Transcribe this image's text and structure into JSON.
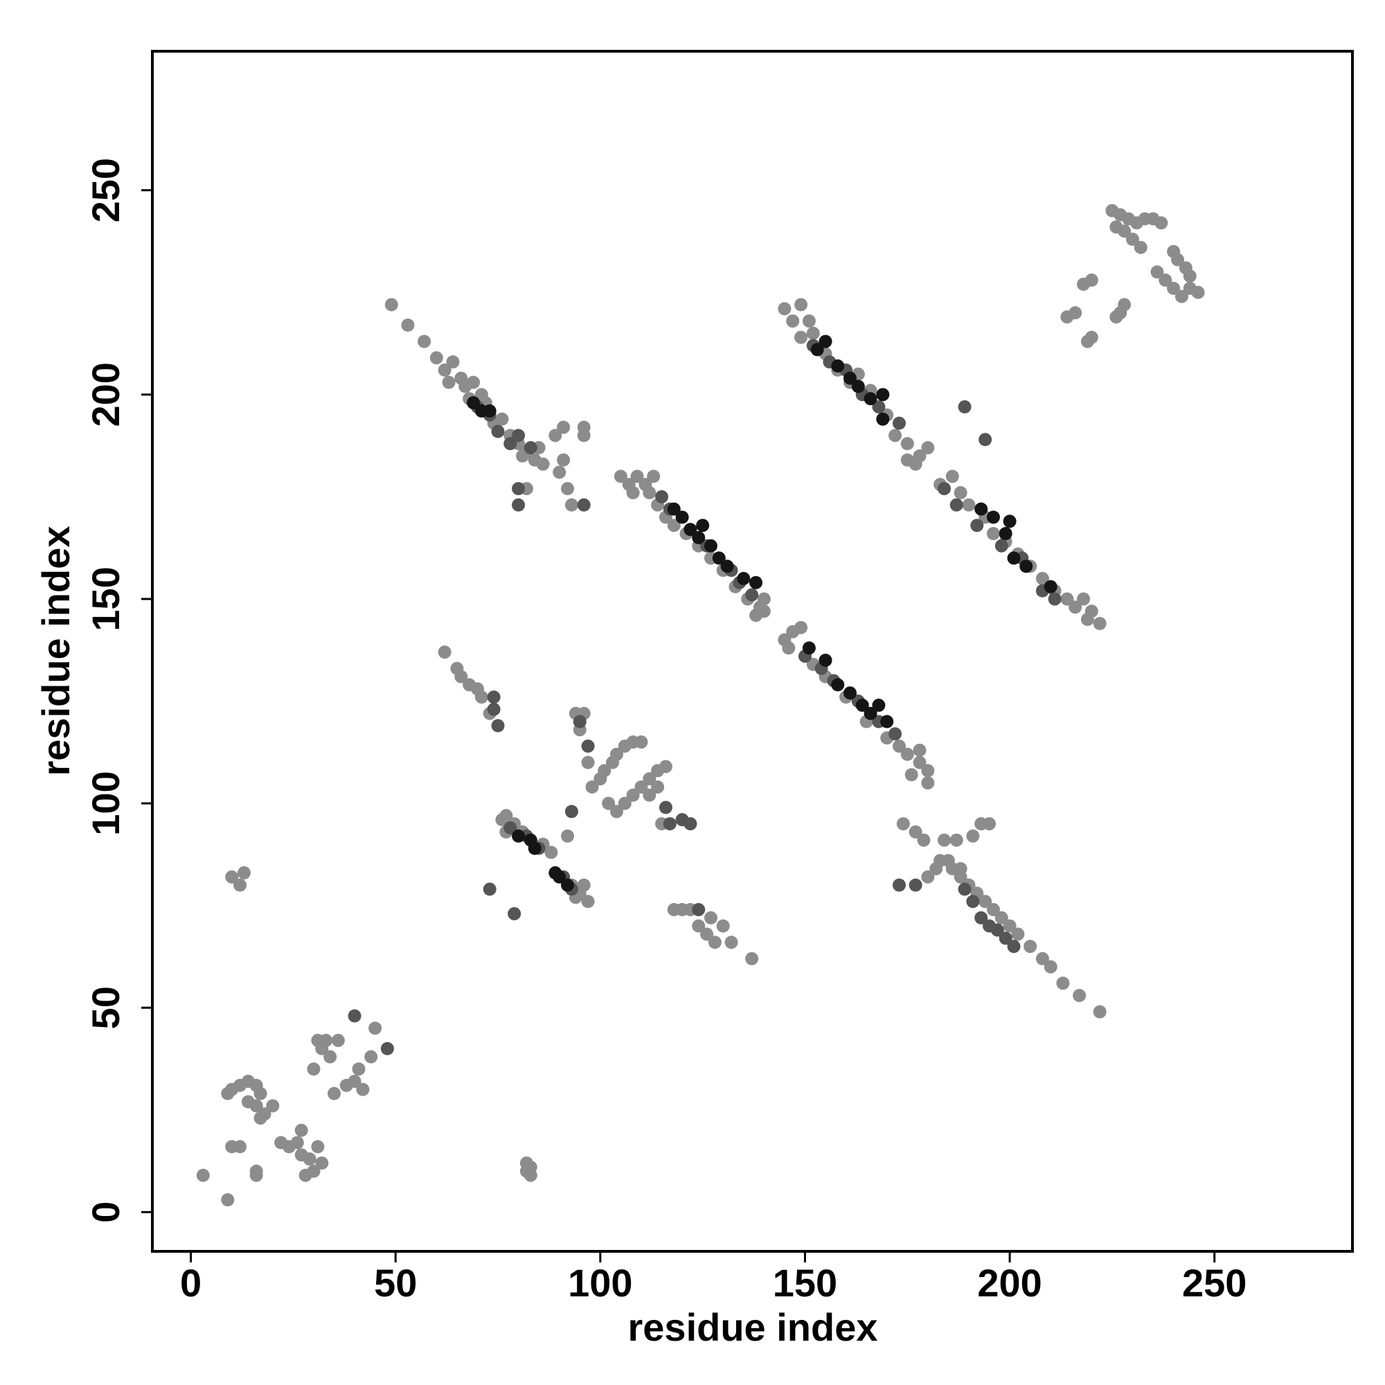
{
  "chart_data": {
    "type": "scatter",
    "xlabel": "residue index",
    "ylabel": "residue index",
    "xlim": [
      -9.4,
      283.7
    ],
    "ylim": [
      -9.6,
      284
    ],
    "xticks": [
      0,
      50,
      100,
      150,
      200,
      250
    ],
    "yticks": [
      0,
      50,
      100,
      150,
      200,
      250
    ],
    "series": [
      {
        "color": "#8c8c8c",
        "x": [
          3,
          9,
          10,
          12,
          16,
          16,
          10,
          12,
          14,
          16,
          17,
          9,
          14,
          16,
          18,
          20,
          17,
          22,
          24,
          26,
          27,
          27,
          29,
          30,
          31,
          32,
          28,
          30,
          32,
          34,
          31,
          33,
          36,
          35,
          38,
          40,
          41,
          42,
          44,
          45,
          10,
          12,
          13,
          82,
          83,
          82,
          83,
          49,
          53,
          57,
          60,
          62,
          63,
          64,
          66,
          67,
          68,
          69,
          71,
          72,
          74,
          76,
          78,
          80,
          82,
          84,
          86,
          81,
          85,
          82,
          89,
          91,
          91,
          90,
          92,
          93,
          96,
          96,
          183,
          186,
          188,
          190,
          192,
          194,
          196,
          198,
          200,
          202,
          205,
          208,
          210,
          213,
          217,
          222,
          180,
          182,
          185,
          188,
          184,
          187,
          191,
          193,
          195,
          174,
          177,
          179,
          105,
          107,
          109,
          111,
          113,
          108,
          112,
          114,
          116,
          118,
          121,
          124,
          127,
          130,
          133,
          136,
          139,
          140,
          138,
          140,
          145,
          147,
          149,
          146,
          152,
          155,
          160,
          165,
          170,
          173,
          175,
          178,
          180,
          180,
          178,
          176,
          145,
          147,
          149,
          151,
          149,
          152,
          155,
          158,
          161,
          163,
          166,
          170,
          172,
          175,
          178,
          180,
          177,
          183,
          186,
          188,
          190,
          194,
          196,
          199,
          202,
          205,
          208,
          211,
          214,
          216,
          218,
          220,
          222,
          219,
          175,
          225,
          227,
          229,
          231,
          233,
          235,
          237,
          228,
          230,
          232,
          226,
          236,
          238,
          240,
          242,
          244,
          246,
          241,
          243,
          244,
          240,
          214,
          216,
          218,
          220,
          219,
          220,
          227,
          228,
          226,
          62,
          65,
          66,
          68,
          70,
          71,
          73,
          118,
          120,
          122,
          124,
          126,
          128,
          130,
          132,
          137,
          127,
          76,
          77,
          79,
          81,
          77,
          86,
          88,
          93,
          95,
          97,
          96,
          94,
          94,
          96,
          95,
          97,
          98,
          100,
          101,
          103,
          104,
          106,
          108,
          110,
          102,
          104,
          106,
          108,
          110,
          112,
          114,
          116,
          114,
          112,
          92,
          115
        ],
        "values": [
          9,
          3,
          16,
          16,
          10,
          9,
          30,
          31,
          32,
          31,
          29,
          29,
          27,
          26,
          24,
          26,
          23,
          17,
          16,
          17,
          20,
          14,
          13,
          10,
          16,
          12,
          9,
          35,
          40,
          38,
          42,
          42,
          42,
          29,
          31,
          32,
          35,
          30,
          38,
          45,
          82,
          80,
          83,
          10,
          11,
          12,
          9,
          222,
          217,
          213,
          209,
          206,
          203,
          208,
          204,
          202,
          199,
          203,
          200,
          198,
          193,
          194,
          190,
          188,
          186,
          184,
          183,
          185,
          187,
          177,
          190,
          192,
          184,
          181,
          177,
          173,
          192,
          190,
          86,
          84,
          82,
          80,
          78,
          76,
          74,
          72,
          70,
          68,
          65,
          62,
          60,
          56,
          53,
          49,
          82,
          84,
          86,
          84,
          91,
          91,
          92,
          95,
          95,
          95,
          93,
          91,
          180,
          178,
          180,
          178,
          180,
          176,
          176,
          173,
          170,
          168,
          166,
          163,
          160,
          157,
          153,
          150,
          148,
          147,
          146,
          150,
          140,
          142,
          143,
          138,
          134,
          131,
          126,
          120,
          116,
          114,
          112,
          110,
          108,
          105,
          113,
          107,
          221,
          218,
          222,
          218,
          214,
          215,
          210,
          206,
          203,
          205,
          201,
          195,
          190,
          188,
          185,
          187,
          183,
          178,
          180,
          176,
          173,
          170,
          166,
          164,
          161,
          158,
          155,
          152,
          150,
          148,
          150,
          147,
          144,
          145,
          184,
          245,
          244,
          243,
          242,
          243,
          243,
          242,
          240,
          238,
          236,
          241,
          230,
          228,
          226,
          224,
          226,
          225,
          233,
          231,
          229,
          235,
          219,
          220,
          227,
          228,
          213,
          214,
          220,
          222,
          219,
          137,
          133,
          131,
          129,
          128,
          126,
          122,
          74,
          74,
          74,
          70,
          68,
          66,
          70,
          66,
          62,
          72,
          96,
          97,
          95,
          93,
          93,
          90,
          88,
          80,
          78,
          76,
          80,
          77,
          122,
          122,
          118,
          110,
          104,
          106,
          108,
          110,
          112,
          114,
          115,
          115,
          100,
          98,
          100,
          102,
          104,
          106,
          108,
          109,
          104,
          102,
          92,
          95
        ]
      },
      {
        "color": "#555555",
        "x": [
          40,
          48,
          70,
          73,
          75,
          78,
          80,
          83,
          80,
          80,
          96,
          189,
          191,
          193,
          195,
          197,
          199,
          201,
          173,
          177,
          115,
          117,
          126,
          132,
          134,
          137,
          150,
          154,
          157,
          163,
          168,
          172,
          152,
          156,
          160,
          164,
          168,
          173,
          184,
          187,
          192,
          198,
          203,
          208,
          211,
          189,
          194,
          74,
          74,
          75,
          124,
          78,
          82,
          85,
          91,
          93,
          73,
          79,
          95,
          97,
          93,
          116,
          117,
          120,
          122
        ],
        "values": [
          48,
          40,
          197,
          195,
          191,
          188,
          190,
          187,
          177,
          173,
          173,
          79,
          76,
          72,
          70,
          69,
          67,
          65,
          80,
          80,
          175,
          172,
          163,
          157,
          154,
          151,
          136,
          133,
          130,
          125,
          120,
          117,
          212,
          208,
          206,
          200,
          197,
          193,
          177,
          173,
          168,
          163,
          160,
          152,
          150,
          197,
          189,
          126,
          123,
          119,
          74,
          94,
          92,
          89,
          82,
          79,
          79,
          73,
          120,
          114,
          98,
          99,
          95,
          96,
          95
        ]
      },
      {
        "color": "#151515",
        "x": [
          69,
          71,
          73,
          118,
          120,
          122,
          124,
          125,
          127,
          129,
          131,
          135,
          138,
          151,
          155,
          158,
          161,
          164,
          166,
          168,
          170,
          153,
          155,
          158,
          161,
          163,
          166,
          169,
          169,
          193,
          196,
          199,
          200,
          201,
          204,
          210,
          80,
          83,
          84,
          89,
          90,
          92
        ],
        "values": [
          198,
          196,
          196,
          172,
          170,
          167,
          165,
          168,
          163,
          160,
          158,
          155,
          154,
          138,
          135,
          129,
          127,
          124,
          122,
          124,
          120,
          211,
          213,
          207,
          204,
          202,
          199,
          200,
          194,
          172,
          170,
          166,
          169,
          160,
          158,
          153,
          92,
          91,
          89,
          83,
          82,
          80
        ]
      }
    ]
  }
}
